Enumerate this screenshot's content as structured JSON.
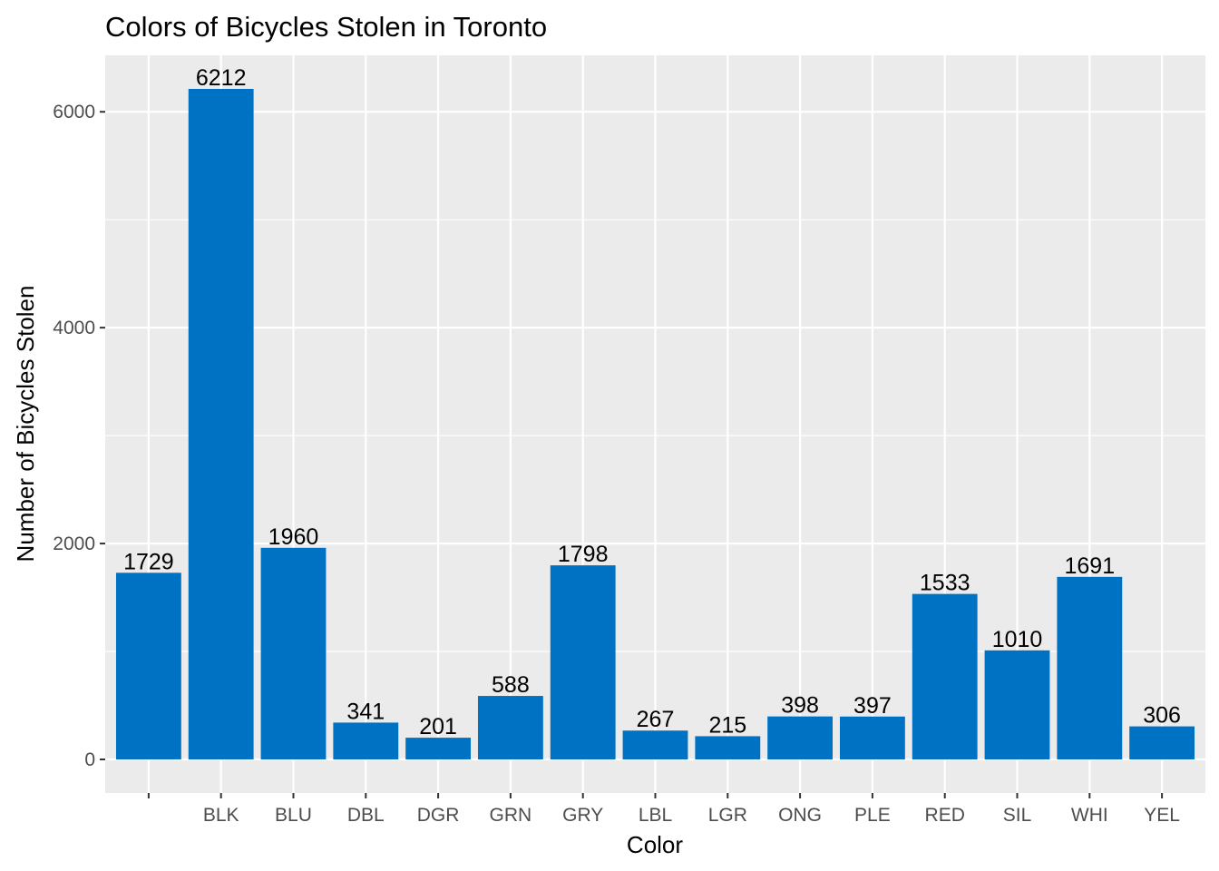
{
  "chart_data": {
    "type": "bar",
    "title": "Colors of Bicycles Stolen in Toronto",
    "xlabel": "Color",
    "ylabel": "Number of Bicycles Stolen",
    "categories": [
      "",
      "BLK",
      "BLU",
      "DBL",
      "DGR",
      "GRN",
      "GRY",
      "LBL",
      "LGR",
      "ONG",
      "PLE",
      "RED",
      "SIL",
      "WHI",
      "YEL"
    ],
    "values": [
      1729,
      6212,
      1960,
      341,
      201,
      588,
      1798,
      267,
      215,
      398,
      397,
      1533,
      1010,
      1691,
      306
    ],
    "data_labels": [
      "1729",
      "6212",
      "1960",
      "341",
      "201",
      "588",
      "1798",
      "267",
      "215",
      "398",
      "397",
      "1533",
      "1010",
      "1691",
      "306"
    ],
    "yticks": [
      0,
      2000,
      4000,
      6000
    ],
    "ytick_labels": [
      "0",
      "2000",
      "4000",
      "6000"
    ],
    "ylim": [
      -311,
      6523
    ],
    "grid": true,
    "legend": "none",
    "colors": {
      "bar": "#0072C4",
      "panel": "#EBEBEB",
      "grid": "#FFFFFF",
      "tick_text": "#4D4D4D",
      "text": "#000000"
    }
  }
}
